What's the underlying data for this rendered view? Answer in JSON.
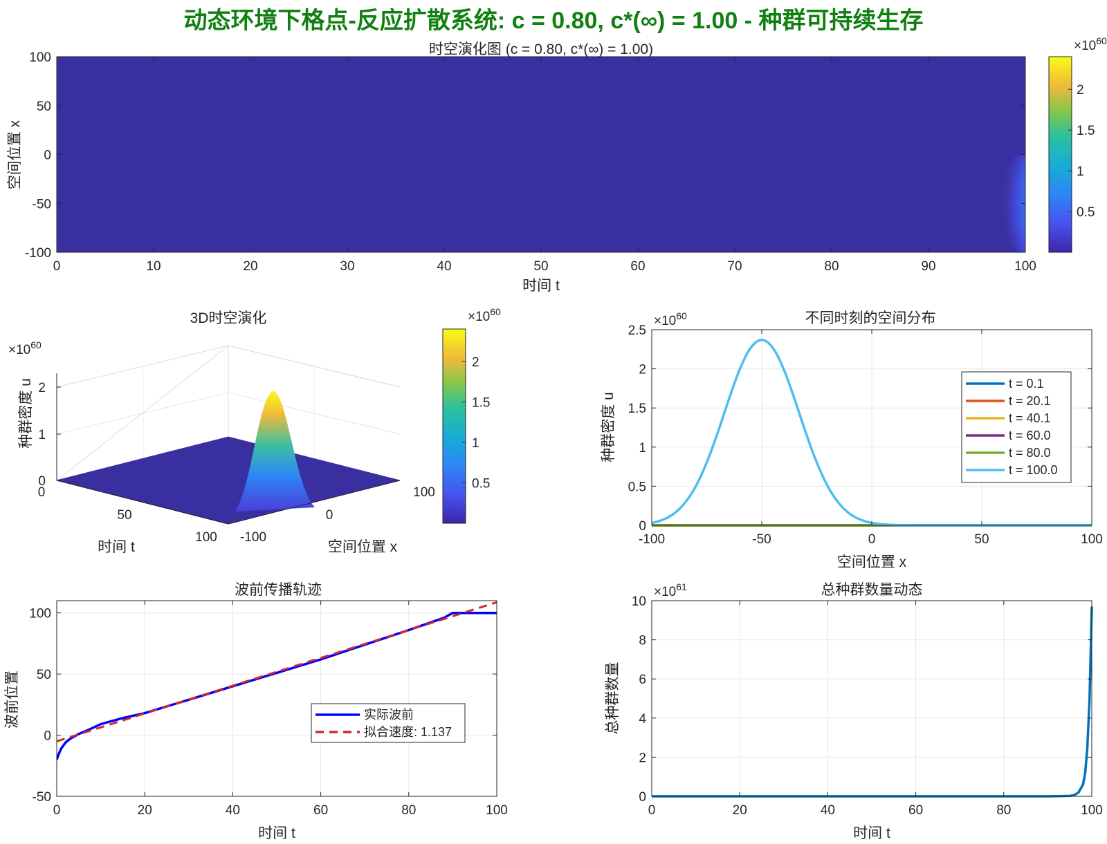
{
  "suptitle": "动态环境下格点-反应扩散系统: c = 0.80, c*(∞) = 1.00 - 种群可持续生存",
  "colors": {
    "title": "#108010",
    "heat_bg": "#3a2fa0"
  },
  "colormap": "parula",
  "chart_data": [
    {
      "type": "heatmap",
      "title": "时空演化图 (c = 0.80, c*(∞) = 1.00)",
      "xlabel": "时间 t",
      "ylabel": "空间位置 x",
      "xlim": [
        0,
        100
      ],
      "ylim": [
        -100,
        100
      ],
      "xticks": [
        "0",
        "10",
        "20",
        "30",
        "40",
        "50",
        "60",
        "70",
        "80",
        "90",
        "100"
      ],
      "yticks": [
        "100",
        "50",
        "0",
        "-50",
        "-100"
      ],
      "colorbar": {
        "ticks": [
          "0.5",
          "1",
          "1.5",
          "2"
        ],
        "exponent": "×10",
        "exp_power": "60",
        "max": 2.4
      },
      "hotspot": {
        "t": 100,
        "x": -50,
        "peak": 2.38
      }
    },
    {
      "type": "surface",
      "title": "3D时空演化",
      "xlabel": "时间 t",
      "ylabel": "空间位置 x",
      "zlabel": "种群密度 u",
      "z_exponent": "×10",
      "z_exp_power": "60",
      "zticks": [
        "0",
        "1",
        "2"
      ],
      "t_ticks": [
        "0",
        "50",
        "100"
      ],
      "x_ticks": [
        "-100",
        "0",
        "100"
      ],
      "colorbar": {
        "ticks": [
          "0.5",
          "1",
          "1.5",
          "2"
        ],
        "exponent": "×10",
        "exp_power": "60"
      },
      "peak": {
        "t": 100,
        "x": -50,
        "u": 2.38
      }
    },
    {
      "type": "line",
      "title": "不同时刻的空间分布",
      "xlabel": "空间位置 x",
      "ylabel": "种群密度 u",
      "y_exponent": "×10",
      "y_exp_power": "60",
      "xlim": [
        -100,
        100
      ],
      "ylim": [
        0,
        2.5
      ],
      "xticks": [
        "-100",
        "-50",
        "0",
        "50",
        "100"
      ],
      "yticks": [
        "0",
        "0.5",
        "1",
        "1.5",
        "2",
        "2.5"
      ],
      "legend_position": "right",
      "series": [
        {
          "name": "t = 0.1",
          "color": "#0072BD",
          "peak": 0
        },
        {
          "name": "t = 20.1",
          "color": "#D95319",
          "peak": 0
        },
        {
          "name": "t = 40.1",
          "color": "#EDB120",
          "peak": 0
        },
        {
          "name": "t = 60.0",
          "color": "#7E2F8E",
          "peak": 0
        },
        {
          "name": "t = 80.0",
          "color": "#77AC30",
          "peak": 0
        },
        {
          "name": "t = 100.0",
          "color": "#4DBEEE",
          "peak": 2.37,
          "center": -50,
          "sigma": 17
        }
      ]
    },
    {
      "type": "line",
      "title": "波前传播轨迹",
      "xlabel": "时间 t",
      "ylabel": "波前位置",
      "xlim": [
        0,
        100
      ],
      "ylim": [
        -50,
        110
      ],
      "xticks": [
        "0",
        "20",
        "40",
        "60",
        "80",
        "100"
      ],
      "yticks": [
        "100",
        "50",
        "0",
        "-50"
      ],
      "legend_position": "center-right",
      "series": [
        {
          "name": "实际波前",
          "color": "#0000FF",
          "x": [
            0,
            0.5,
            1,
            2,
            3,
            4,
            5,
            7,
            10,
            15,
            20,
            30,
            40,
            50,
            60,
            70,
            80,
            88,
            90,
            92,
            95,
            100
          ],
          "y": [
            -20,
            -15,
            -11,
            -6,
            -3,
            -1,
            1,
            4,
            9,
            14,
            18,
            29,
            40,
            51,
            62,
            74,
            86,
            96,
            100,
            100,
            100,
            100
          ]
        },
        {
          "name": "拟合速度: 1.137",
          "color": "#D62728",
          "dashed": true,
          "x": [
            0,
            100
          ],
          "y": [
            -5,
            108.7
          ]
        }
      ]
    },
    {
      "type": "line",
      "title": "总种群数量动态",
      "xlabel": "时间 t",
      "ylabel": "总种群数量",
      "y_exponent": "×10",
      "y_exp_power": "61",
      "xlim": [
        0,
        100
      ],
      "ylim": [
        0,
        10
      ],
      "xticks": [
        "0",
        "20",
        "40",
        "60",
        "80",
        "100"
      ],
      "yticks": [
        "10",
        "8",
        "6",
        "4",
        "2",
        "0"
      ],
      "series": [
        {
          "name": "",
          "color": "#0072BD",
          "x": [
            0,
            90,
            95,
            96,
            97,
            98,
            98.5,
            99,
            99.5,
            100
          ],
          "y": [
            0,
            0,
            0.02,
            0.06,
            0.2,
            0.6,
            1.2,
            2.5,
            5.0,
            9.7
          ]
        }
      ]
    }
  ]
}
